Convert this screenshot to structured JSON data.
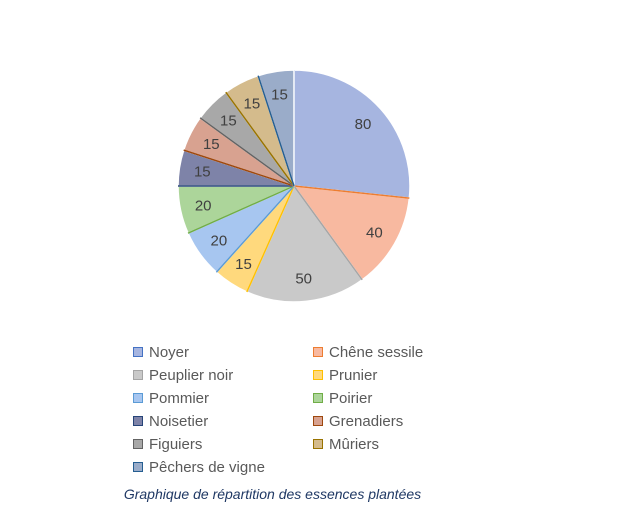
{
  "chart_data": {
    "type": "pie",
    "categories": [
      "Noyer",
      "Chêne sessile",
      "Peuplier noir",
      "Prunier",
      "Pommier",
      "Poirier",
      "Noisetier",
      "Grenadiers",
      "Figuiers",
      "Mûriers",
      "Pêchers de vigne"
    ],
    "values": [
      80,
      40,
      50,
      15,
      20,
      20,
      15,
      15,
      15,
      15,
      15
    ],
    "colors": [
      "#a6b5e0",
      "#f8b9a0",
      "#c9c9c9",
      "#ffd97d",
      "#a7c6f0",
      "#acd59a",
      "#7e83a8",
      "#d8a290",
      "#a8a8a8",
      "#d4bb8c",
      "#9aacc9"
    ],
    "edge_colors": [
      "#4472c4",
      "#ed7d31",
      "#a5a5a5",
      "#ffc000",
      "#5b9bd5",
      "#70ad47",
      "#264478",
      "#9e480e",
      "#636363",
      "#997300",
      "#255e91"
    ],
    "legend_position": "bottom",
    "caption": "Graphique  de répartition des essences plantées"
  }
}
